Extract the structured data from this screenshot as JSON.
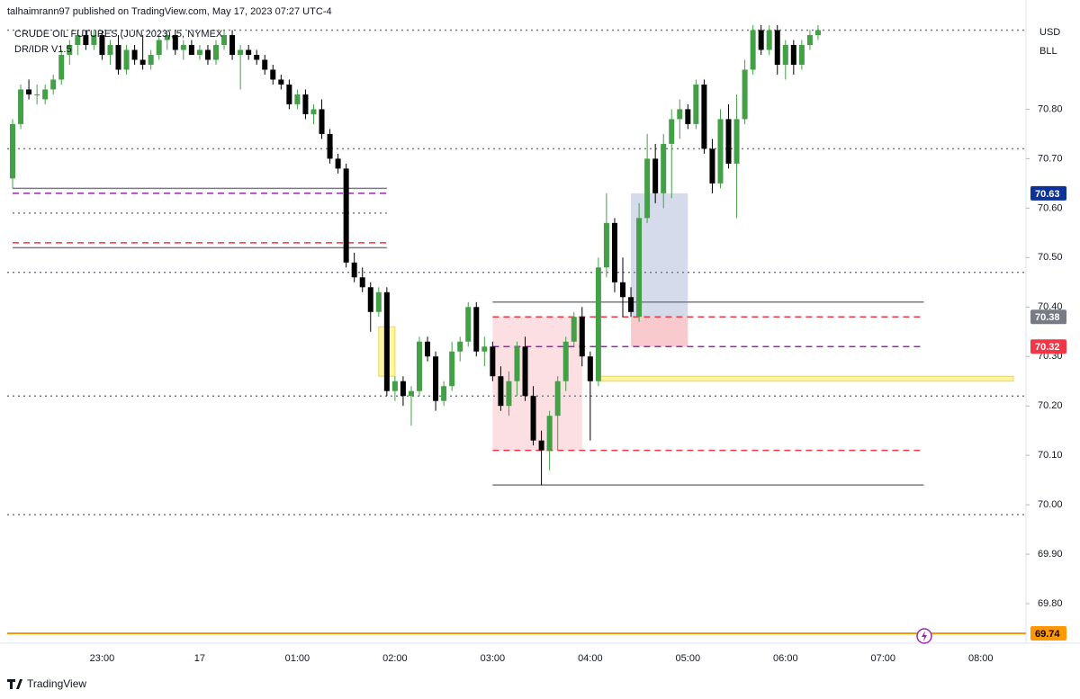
{
  "header": {
    "publisher": "talhaimrann97 published on TradingView.com, May 17, 2023 07:27 UTC-4",
    "symbol": "CRUDE OIL FUTURES (JUN 2023), 5, NYMEX",
    "indicator": "DR/IDR V1.5",
    "currency": "USD",
    "unit": "BLL"
  },
  "footer": {
    "brand": "TradingView"
  },
  "chart_data": {
    "type": "candlestick",
    "categories": [
      null,
      null,
      null,
      null,
      null,
      null,
      null,
      null,
      null,
      null,
      null,
      "23:00",
      null,
      null,
      null,
      null,
      null,
      null,
      null,
      null,
      null,
      null,
      null,
      "17",
      null,
      null,
      null,
      null,
      null,
      null,
      null,
      null,
      null,
      null,
      null,
      "01:00",
      null,
      null,
      null,
      null,
      null,
      null,
      null,
      null,
      null,
      null,
      null,
      "02:00",
      null,
      null,
      null,
      null,
      null,
      null,
      null,
      null,
      null,
      null,
      null,
      "03:00",
      null,
      null,
      null,
      null,
      null,
      null,
      null,
      null,
      null,
      null,
      null,
      "04:00",
      null,
      null,
      null,
      null,
      null,
      null,
      null,
      null,
      null,
      null,
      null,
      "05:00",
      null,
      null,
      null,
      null,
      null,
      null,
      null,
      null,
      null,
      null,
      null,
      "06:00",
      null,
      null,
      null,
      null,
      null,
      null,
      null,
      null,
      null,
      null,
      null,
      "07:00",
      null,
      null,
      null,
      null,
      null,
      null,
      null,
      null,
      null,
      null,
      null,
      "08:00",
      null,
      null,
      null,
      null
    ],
    "open": [
      70.66,
      70.77,
      70.84,
      70.83,
      70.82,
      70.84,
      70.86,
      70.91,
      70.93,
      70.95,
      70.93,
      70.95,
      70.91,
      70.93,
      70.88,
      70.92,
      70.9,
      70.89,
      70.91,
      70.94,
      70.95,
      70.92,
      70.93,
      70.91,
      70.92,
      70.9,
      70.93,
      70.95,
      70.91,
      70.92,
      70.91,
      70.9,
      70.88,
      70.86,
      70.85,
      70.81,
      70.83,
      70.79,
      70.8,
      70.75,
      70.7,
      70.68,
      70.49,
      70.46,
      70.44,
      70.39,
      70.43,
      70.23,
      70.25,
      70.22,
      70.23,
      70.33,
      70.3,
      70.21,
      70.24,
      70.31,
      70.33,
      70.4,
      70.31,
      70.32,
      70.26,
      70.2,
      70.25,
      70.32,
      70.22,
      70.13,
      70.11,
      70.18,
      70.25,
      70.33,
      70.38,
      70.3,
      70.25,
      70.48,
      70.57,
      70.45,
      70.42,
      70.38,
      70.58,
      70.7,
      70.63,
      70.73,
      70.78,
      70.8,
      70.77,
      70.85,
      70.72,
      70.65,
      70.78,
      70.69,
      70.78,
      70.88,
      70.96,
      70.92,
      70.96,
      70.89,
      70.93,
      70.89,
      70.93,
      70.95,
      null,
      null,
      null,
      null,
      null,
      null,
      null,
      null,
      null,
      null,
      null,
      null,
      null,
      null,
      null,
      null,
      null,
      null,
      null,
      null,
      null,
      null,
      null,
      null
    ],
    "high": [
      70.78,
      70.85,
      70.86,
      70.85,
      70.85,
      70.87,
      70.92,
      70.94,
      70.96,
      70.96,
      70.96,
      70.96,
      70.94,
      70.95,
      70.93,
      70.93,
      70.95,
      70.92,
      70.95,
      70.96,
      70.96,
      70.94,
      70.94,
      70.93,
      70.93,
      70.94,
      70.96,
      70.96,
      70.93,
      70.93,
      70.92,
      70.91,
      70.89,
      70.87,
      70.86,
      70.84,
      70.84,
      70.81,
      70.82,
      70.76,
      70.71,
      70.69,
      70.51,
      70.48,
      70.45,
      70.44,
      70.44,
      70.26,
      70.26,
      70.24,
      70.34,
      70.34,
      70.31,
      70.25,
      70.33,
      70.34,
      70.41,
      70.41,
      70.34,
      70.33,
      70.28,
      70.27,
      70.33,
      70.34,
      70.24,
      70.15,
      70.19,
      70.26,
      70.34,
      70.39,
      70.4,
      70.31,
      70.5,
      70.63,
      70.58,
      70.5,
      70.44,
      70.61,
      70.75,
      70.73,
      70.75,
      70.8,
      70.82,
      70.81,
      70.86,
      70.86,
      70.74,
      70.8,
      70.81,
      70.83,
      70.9,
      70.97,
      70.97,
      70.97,
      70.97,
      70.94,
      70.94,
      70.94,
      70.96,
      70.97,
      null,
      null,
      null,
      null,
      null,
      null,
      null,
      null,
      null,
      null,
      null,
      null,
      null,
      null,
      null,
      null,
      null,
      null,
      null,
      null,
      null,
      null,
      null,
      null
    ],
    "low": [
      70.64,
      70.76,
      70.82,
      70.81,
      70.81,
      70.83,
      70.85,
      70.89,
      70.91,
      70.92,
      70.92,
      70.9,
      70.89,
      70.87,
      70.87,
      70.89,
      70.88,
      70.88,
      70.9,
      70.92,
      70.91,
      70.9,
      70.91,
      70.9,
      70.89,
      70.89,
      70.92,
      70.9,
      70.84,
      70.9,
      70.89,
      70.87,
      70.85,
      70.84,
      70.8,
      70.8,
      70.78,
      70.77,
      70.74,
      70.69,
      70.67,
      70.48,
      70.45,
      70.43,
      70.35,
      70.38,
      70.22,
      70.21,
      70.2,
      70.16,
      70.22,
      70.29,
      70.19,
      70.2,
      70.23,
      70.29,
      70.32,
      70.3,
      70.28,
      70.25,
      70.19,
      70.18,
      70.22,
      70.21,
      70.12,
      70.04,
      70.07,
      70.11,
      70.23,
      70.32,
      70.28,
      70.13,
      70.24,
      70.46,
      70.43,
      70.38,
      70.38,
      70.37,
      70.57,
      70.61,
      70.6,
      70.62,
      70.74,
      70.76,
      70.76,
      70.71,
      70.63,
      70.64,
      70.68,
      70.58,
      70.77,
      70.87,
      70.91,
      70.91,
      70.87,
      70.86,
      70.87,
      70.88,
      70.92,
      70.94,
      null,
      null,
      null,
      null,
      null,
      null,
      null,
      null,
      null,
      null,
      null,
      null,
      null,
      null,
      null,
      null,
      null,
      null,
      null,
      null,
      null,
      null,
      null,
      null
    ],
    "close": [
      70.77,
      70.84,
      70.83,
      70.83,
      70.84,
      70.86,
      70.91,
      70.93,
      70.95,
      70.93,
      70.95,
      70.91,
      70.93,
      70.88,
      70.92,
      70.9,
      70.89,
      70.91,
      70.94,
      70.95,
      70.92,
      70.93,
      70.91,
      70.92,
      70.9,
      70.93,
      70.95,
      70.91,
      70.92,
      70.91,
      70.9,
      70.88,
      70.86,
      70.85,
      70.81,
      70.83,
      70.79,
      70.8,
      70.75,
      70.7,
      70.68,
      70.49,
      70.46,
      70.44,
      70.39,
      70.43,
      70.23,
      70.25,
      70.22,
      70.23,
      70.33,
      70.3,
      70.21,
      70.24,
      70.31,
      70.33,
      70.4,
      70.31,
      70.32,
      70.26,
      70.2,
      70.25,
      70.32,
      70.22,
      70.13,
      70.11,
      70.18,
      70.25,
      70.33,
      70.38,
      70.3,
      70.25,
      70.48,
      70.57,
      70.45,
      70.42,
      70.39,
      70.58,
      70.7,
      70.63,
      70.73,
      70.78,
      70.8,
      70.77,
      70.85,
      70.72,
      70.65,
      70.78,
      70.69,
      70.78,
      70.88,
      70.96,
      70.92,
      70.96,
      70.89,
      70.93,
      70.89,
      70.93,
      70.95,
      70.96,
      null,
      null,
      null,
      null,
      null,
      null,
      null,
      null,
      null,
      null,
      null,
      null,
      null,
      null,
      null,
      null,
      null,
      null,
      null,
      null,
      null,
      null,
      null,
      null
    ],
    "up_color": "#43a047",
    "down_color": "#000000",
    "ylim": [
      69.72,
      70.97
    ],
    "yticks": [
      {
        "value": 69.8,
        "label": "69.80"
      },
      {
        "value": 69.9,
        "label": "69.90"
      },
      {
        "value": 70.0,
        "label": "70.00"
      },
      {
        "value": 70.1,
        "label": "70.10"
      },
      {
        "value": 70.2,
        "label": "70.20"
      },
      {
        "value": 70.3,
        "label": "70.30"
      },
      {
        "value": 70.4,
        "label": "70.40"
      },
      {
        "value": 70.5,
        "label": "70.50"
      },
      {
        "value": 70.6,
        "label": "70.60"
      },
      {
        "value": 70.7,
        "label": "70.70"
      },
      {
        "value": 70.8,
        "label": "70.80"
      }
    ],
    "grid": false,
    "levels": [
      {
        "value": 70.96,
        "color": "#787b86",
        "style": "dotted"
      },
      {
        "value": 70.72,
        "color": "#787b86",
        "style": "dotted"
      },
      {
        "value": 70.47,
        "color": "#787b86",
        "style": "dotted"
      },
      {
        "value": 70.22,
        "color": "#787b86",
        "style": "dotted"
      },
      {
        "value": 69.98,
        "color": "#787b86",
        "style": "dotted"
      },
      {
        "value": 70.64,
        "color": "#787b86",
        "style": "solid",
        "from": 0,
        "to": 46
      },
      {
        "value": 70.63,
        "color": "#9c27b0",
        "style": "dashed",
        "from": 0,
        "to": 46
      },
      {
        "value": 70.59,
        "color": "#787b86",
        "style": "dotted",
        "from": 0,
        "to": 46
      },
      {
        "value": 70.53,
        "color": "#f23645",
        "style": "dashed",
        "from": 0,
        "to": 46
      },
      {
        "value": 70.52,
        "color": "#787b86",
        "style": "solid",
        "from": 0,
        "to": 46
      },
      {
        "value": 70.41,
        "color": "#787b86",
        "style": "solid",
        "from": 59,
        "to": 112
      },
      {
        "value": 70.38,
        "color": "#f23645",
        "style": "dashed",
        "from": 59,
        "to": 112
      },
      {
        "value": 70.32,
        "color": "#9c27b0",
        "style": "dashed",
        "from": 59,
        "to": 112
      },
      {
        "value": 70.11,
        "color": "#f23645",
        "style": "dashed",
        "from": 59,
        "to": 112
      },
      {
        "value": 70.04,
        "color": "#787b86",
        "style": "solid",
        "from": 59,
        "to": 112
      },
      {
        "value": 69.74,
        "color": "#ff9800",
        "style": "solid"
      }
    ],
    "boxes": [
      {
        "top": 70.36,
        "bottom": 70.26,
        "from": 45,
        "to": 47,
        "color": "#fff59d"
      },
      {
        "top": 70.38,
        "bottom": 70.11,
        "from": 59,
        "to": 70,
        "color": "#fcdfe2"
      },
      {
        "top": 70.38,
        "bottom": 70.32,
        "from": 76,
        "to": 83,
        "color": "#f8c9cd"
      },
      {
        "top": 70.63,
        "bottom": 70.38,
        "from": 76,
        "to": 83,
        "color": "#d6dbeb"
      },
      {
        "top": 70.26,
        "bottom": 70.25,
        "from": 72,
        "to": 123,
        "color": "#fff59d"
      }
    ],
    "price_tags": [
      {
        "value": 70.63,
        "color": "#0c3299",
        "text_color": "#ffffff"
      },
      {
        "value": 70.38,
        "color": "#787b86",
        "text_color": "#ffffff"
      },
      {
        "value": 70.32,
        "color": "#f23645",
        "text_color": "#ffffff"
      },
      {
        "value": 69.74,
        "color": "#ff9800",
        "text_color": "#000000"
      }
    ]
  }
}
